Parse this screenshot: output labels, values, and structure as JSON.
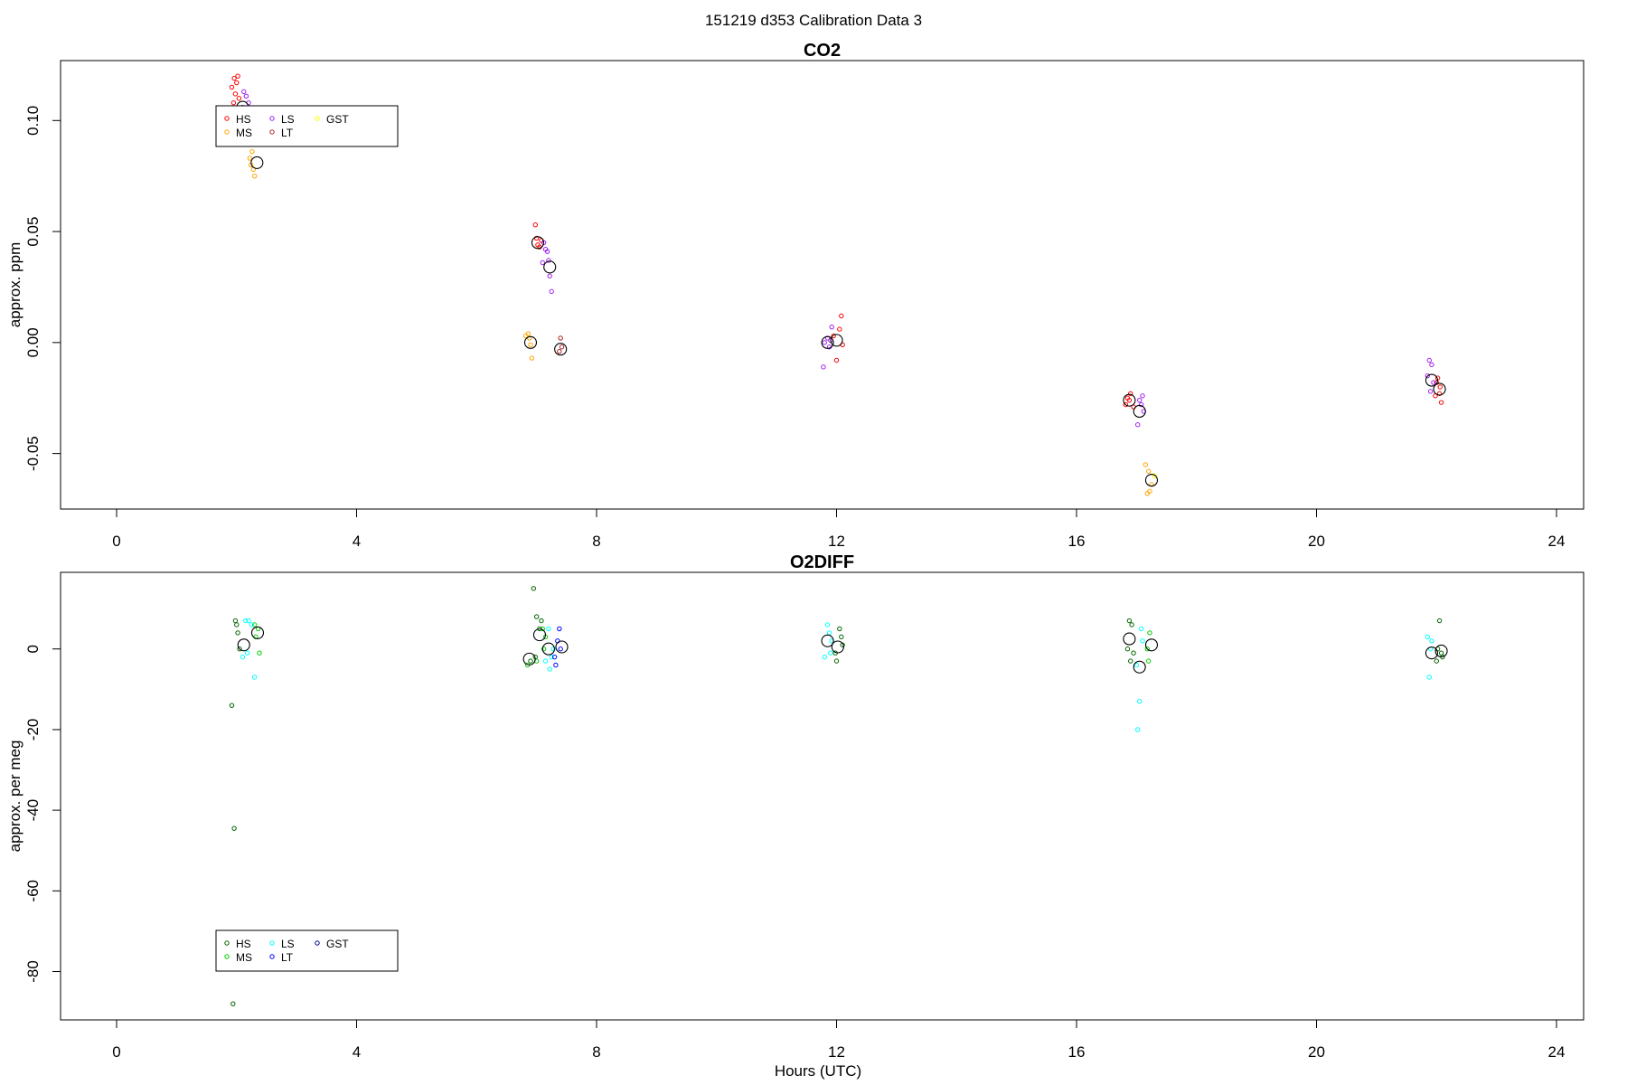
{
  "figure": {
    "title": "151219   d353   Calibration Data 3",
    "xlabel": "Hours (UTC)"
  },
  "chart_data": [
    {
      "type": "scatter",
      "title": "CO2",
      "ylabel": "approx. ppm",
      "xlim": [
        -0.9,
        24.9
      ],
      "ylim": [
        -0.075,
        0.127
      ],
      "xticks": [
        "0",
        "4",
        "8",
        "12",
        "16",
        "20",
        "24"
      ],
      "yticks": [
        "-0.05",
        "0.00",
        "0.05",
        "0.10"
      ],
      "legend": {
        "placement": "top-left",
        "entries": [
          {
            "label": "HS",
            "color": "#ff0000"
          },
          {
            "label": "MS",
            "color": "#ffa500"
          },
          {
            "label": "LS",
            "color": "#a020f0"
          },
          {
            "label": "LT",
            "color": "#b22222"
          },
          {
            "label": "GST",
            "color": "#ffff00"
          }
        ]
      },
      "series": [
        {
          "name": "HS",
          "color": "#ff0000",
          "points": [
            [
              1.92,
              0.115
            ],
            [
              1.96,
              0.119
            ],
            [
              1.98,
              0.112
            ],
            [
              2.0,
              0.117
            ],
            [
              2.02,
              0.12
            ],
            [
              2.04,
              0.11
            ],
            [
              1.95,
              0.108
            ],
            [
              6.98,
              0.053
            ],
            [
              7.0,
              0.047
            ],
            [
              7.02,
              0.044
            ],
            [
              7.05,
              0.043
            ],
            [
              7.08,
              0.046
            ],
            [
              12.05,
              0.006
            ],
            [
              12.08,
              0.012
            ],
            [
              12.0,
              -0.008
            ],
            [
              11.95,
              0.003
            ],
            [
              12.1,
              -0.001
            ],
            [
              16.85,
              -0.025
            ],
            [
              16.9,
              -0.023
            ],
            [
              16.95,
              -0.029
            ],
            [
              16.82,
              -0.028
            ],
            [
              16.88,
              -0.026
            ],
            [
              22.0,
              -0.018
            ],
            [
              22.05,
              -0.023
            ],
            [
              22.08,
              -0.027
            ],
            [
              22.02,
              -0.016
            ],
            [
              22.06,
              -0.02
            ],
            [
              21.98,
              -0.024
            ]
          ]
        },
        {
          "name": "MS",
          "color": "#ffa500",
          "points": [
            [
              2.22,
              0.083
            ],
            [
              2.26,
              0.086
            ],
            [
              2.28,
              0.078
            ],
            [
              2.3,
              0.075
            ],
            [
              2.24,
              0.08
            ],
            [
              6.82,
              0.003
            ],
            [
              6.86,
              0.004
            ],
            [
              6.9,
              -0.001
            ],
            [
              6.92,
              -0.007
            ],
            [
              6.88,
              0.002
            ],
            [
              17.15,
              -0.055
            ],
            [
              17.2,
              -0.058
            ],
            [
              17.22,
              -0.067
            ],
            [
              17.18,
              -0.068
            ],
            [
              17.25,
              -0.064
            ]
          ]
        },
        {
          "name": "LS",
          "color": "#a020f0",
          "points": [
            [
              2.12,
              0.113
            ],
            [
              2.16,
              0.111
            ],
            [
              2.2,
              0.108
            ],
            [
              2.1,
              0.106
            ],
            [
              7.12,
              0.045
            ],
            [
              7.15,
              0.042
            ],
            [
              7.18,
              0.041
            ],
            [
              7.2,
              0.037
            ],
            [
              7.22,
              0.03
            ],
            [
              7.25,
              0.023
            ],
            [
              7.1,
              0.036
            ],
            [
              11.8,
              0.0
            ],
            [
              11.85,
              0.002
            ],
            [
              11.88,
              -0.002
            ],
            [
              11.92,
              0.007
            ],
            [
              11.78,
              -0.011
            ],
            [
              11.9,
              0.001
            ],
            [
              17.05,
              -0.026
            ],
            [
              17.1,
              -0.024
            ],
            [
              17.08,
              -0.028
            ],
            [
              17.02,
              -0.037
            ],
            [
              17.12,
              -0.031
            ],
            [
              21.88,
              -0.008
            ],
            [
              21.92,
              -0.01
            ],
            [
              21.95,
              -0.018
            ],
            [
              21.9,
              -0.022
            ],
            [
              21.85,
              -0.015
            ]
          ]
        },
        {
          "name": "LT",
          "color": "#b22222",
          "points": [
            [
              7.4,
              0.002
            ],
            [
              7.42,
              -0.002
            ],
            [
              7.38,
              -0.004
            ]
          ]
        },
        {
          "name": "GST",
          "color": "#ffff00",
          "points": [
            [
              17.3,
              -0.06
            ]
          ]
        },
        {
          "name": "",
          "color": "#000000",
          "marker": "large-circle",
          "points": [
            [
              2.1,
              0.106
            ],
            [
              2.34,
              0.081
            ],
            [
              7.02,
              0.045
            ],
            [
              7.22,
              0.034
            ],
            [
              6.9,
              0.0
            ],
            [
              7.4,
              -0.003
            ],
            [
              11.85,
              0.0
            ],
            [
              12.0,
              0.001
            ],
            [
              16.88,
              -0.026
            ],
            [
              17.05,
              -0.031
            ],
            [
              17.25,
              -0.062
            ],
            [
              21.92,
              -0.017
            ],
            [
              22.05,
              -0.021
            ]
          ]
        }
      ]
    },
    {
      "type": "scatter",
      "title": "O2DIFF",
      "ylabel": "approx. per meg",
      "xlim": [
        -0.9,
        24.9
      ],
      "ylim": [
        -92,
        19
      ],
      "xticks": [
        "0",
        "4",
        "8",
        "12",
        "16",
        "20",
        "24"
      ],
      "yticks": [
        "-80",
        "-60",
        "-40",
        "-20",
        "0"
      ],
      "legend": {
        "placement": "bottom-left",
        "entries": [
          {
            "label": "HS",
            "color": "#006400"
          },
          {
            "label": "MS",
            "color": "#00cd00"
          },
          {
            "label": "LS",
            "color": "#00ffff"
          },
          {
            "label": "LT",
            "color": "#0000ff"
          },
          {
            "label": "GST",
            "color": "#00008b"
          }
        ]
      },
      "series": [
        {
          "name": "HS",
          "color": "#006400",
          "points": [
            [
              1.92,
              -14
            ],
            [
              1.96,
              -44.5
            ],
            [
              1.94,
              -88
            ],
            [
              2.0,
              6
            ],
            [
              2.02,
              4
            ],
            [
              2.05,
              0
            ],
            [
              1.98,
              7
            ],
            [
              6.95,
              15
            ],
            [
              7.0,
              8
            ],
            [
              7.05,
              5
            ],
            [
              6.9,
              -3
            ],
            [
              6.98,
              -2
            ],
            [
              7.08,
              7
            ],
            [
              12.05,
              5
            ],
            [
              12.08,
              3
            ],
            [
              12.0,
              -3
            ],
            [
              11.98,
              -1
            ],
            [
              12.1,
              1
            ],
            [
              16.88,
              7
            ],
            [
              16.92,
              6
            ],
            [
              16.85,
              0
            ],
            [
              16.95,
              -1
            ],
            [
              16.9,
              -3
            ],
            [
              22.05,
              7
            ],
            [
              22.0,
              -3
            ],
            [
              22.08,
              -1
            ],
            [
              22.1,
              -2
            ],
            [
              22.02,
              0
            ]
          ]
        },
        {
          "name": "MS",
          "color": "#00cd00",
          "points": [
            [
              2.3,
              6
            ],
            [
              2.36,
              5
            ],
            [
              2.38,
              -1
            ],
            [
              2.32,
              3
            ],
            [
              7.1,
              5
            ],
            [
              7.15,
              3
            ],
            [
              6.85,
              -4
            ],
            [
              7.0,
              -3
            ],
            [
              7.12,
              0
            ],
            [
              17.22,
              4
            ],
            [
              17.2,
              -3
            ],
            [
              17.18,
              0
            ]
          ]
        },
        {
          "name": "LS",
          "color": "#00ffff",
          "points": [
            [
              2.15,
              7
            ],
            [
              2.2,
              7
            ],
            [
              2.25,
              6
            ],
            [
              2.1,
              -2
            ],
            [
              2.3,
              -7
            ],
            [
              2.18,
              -1
            ],
            [
              7.2,
              5
            ],
            [
              7.25,
              -2
            ],
            [
              7.22,
              -5
            ],
            [
              7.15,
              -3
            ],
            [
              7.28,
              0
            ],
            [
              11.85,
              6
            ],
            [
              11.88,
              4
            ],
            [
              11.8,
              -2
            ],
            [
              11.9,
              -1
            ],
            [
              11.92,
              2
            ],
            [
              17.02,
              -20
            ],
            [
              17.05,
              -13
            ],
            [
              17.08,
              5
            ],
            [
              17.1,
              2
            ],
            [
              17.0,
              -4
            ],
            [
              21.85,
              3
            ],
            [
              21.88,
              -7
            ],
            [
              21.9,
              0
            ],
            [
              21.92,
              2
            ]
          ]
        },
        {
          "name": "LT",
          "color": "#0000ff",
          "points": [
            [
              7.32,
              -4
            ],
            [
              7.38,
              5
            ],
            [
              7.4,
              0
            ],
            [
              7.35,
              2
            ],
            [
              7.3,
              -2
            ]
          ]
        },
        {
          "name": "GST",
          "color": "#00008b",
          "points": []
        },
        {
          "name": "",
          "color": "#000000",
          "marker": "large-circle",
          "points": [
            [
              2.12,
              1
            ],
            [
              2.35,
              4
            ],
            [
              6.88,
              -2.5
            ],
            [
              7.05,
              3.5
            ],
            [
              7.2,
              0
            ],
            [
              7.42,
              0.5
            ],
            [
              11.85,
              2
            ],
            [
              12.02,
              0.5
            ],
            [
              16.88,
              2.5
            ],
            [
              17.05,
              -4.5
            ],
            [
              17.25,
              1
            ],
            [
              21.92,
              -1
            ],
            [
              22.08,
              -0.5
            ]
          ]
        }
      ]
    }
  ]
}
